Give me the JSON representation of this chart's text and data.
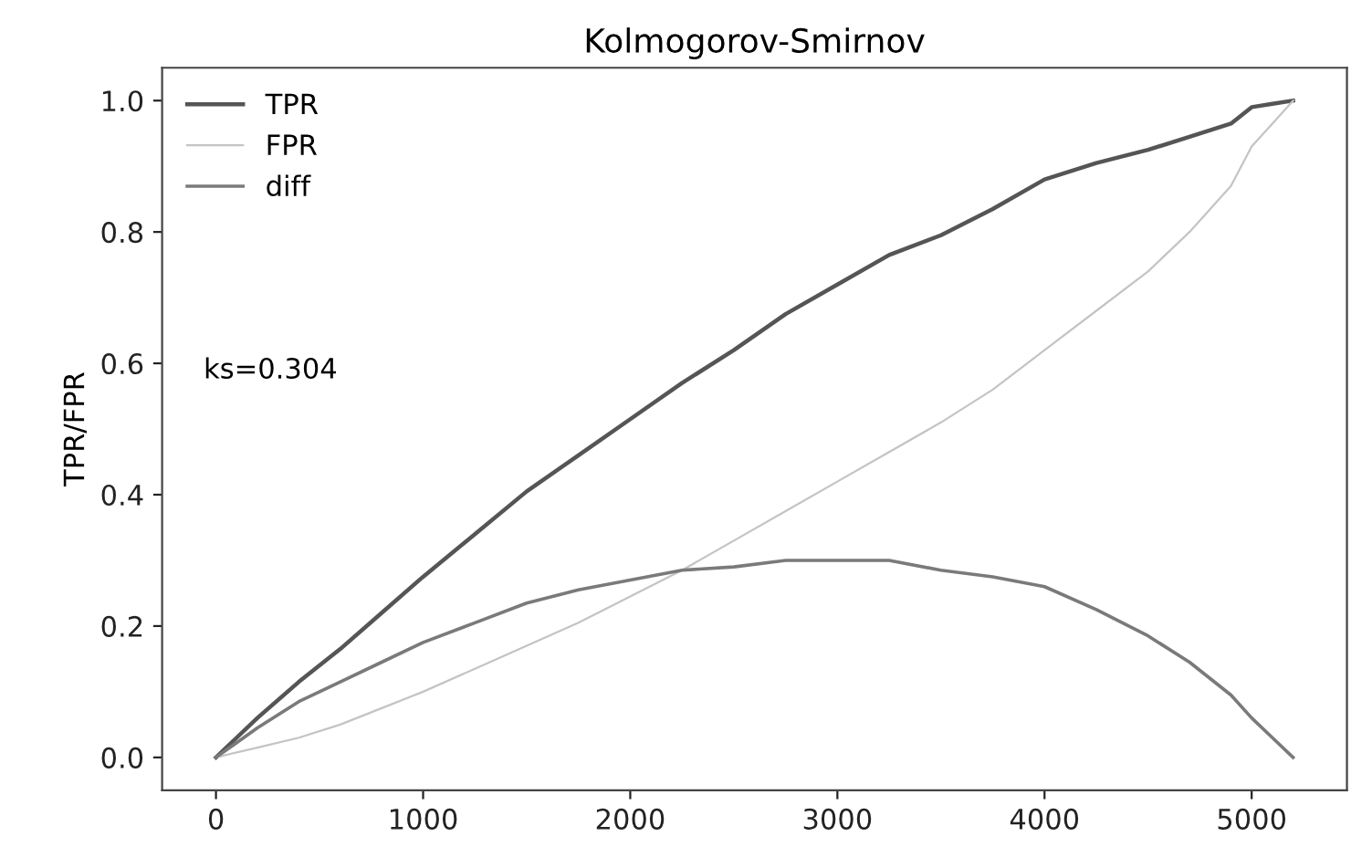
{
  "chart_data": {
    "type": "line",
    "title": "Kolmogorov-Smirnov",
    "ylabel": "TPR/FPR",
    "x": [
      0,
      200,
      400,
      600,
      800,
      1000,
      1250,
      1500,
      1750,
      2000,
      2250,
      2500,
      2750,
      3000,
      3250,
      3500,
      3750,
      4000,
      4250,
      4500,
      4700,
      4900,
      5000,
      5100,
      5200
    ],
    "series": [
      {
        "name": "TPR",
        "color": "#555555",
        "values": [
          0,
          0.06,
          0.115,
          0.165,
          0.22,
          0.275,
          0.34,
          0.405,
          0.46,
          0.515,
          0.57,
          0.62,
          0.675,
          0.72,
          0.765,
          0.795,
          0.835,
          0.88,
          0.905,
          0.925,
          0.945,
          0.965,
          0.99,
          0.995,
          1.0
        ]
      },
      {
        "name": "FPR",
        "color": "#c4c4c4",
        "values": [
          0,
          0.015,
          0.03,
          0.05,
          0.075,
          0.1,
          0.135,
          0.17,
          0.205,
          0.245,
          0.285,
          0.33,
          0.375,
          0.42,
          0.465,
          0.51,
          0.56,
          0.62,
          0.68,
          0.74,
          0.8,
          0.87,
          0.93,
          0.965,
          1.0
        ]
      },
      {
        "name": "diff",
        "color": "#7a7a7a",
        "values": [
          0,
          0.045,
          0.085,
          0.115,
          0.145,
          0.175,
          0.205,
          0.235,
          0.255,
          0.27,
          0.285,
          0.29,
          0.3,
          0.3,
          0.3,
          0.285,
          0.275,
          0.26,
          0.225,
          0.185,
          0.145,
          0.095,
          0.06,
          0.03,
          0.0
        ]
      }
    ],
    "xlim": [
      -260,
      5460
    ],
    "ylim": [
      -0.05,
      1.05
    ],
    "xticks": [
      0,
      1000,
      2000,
      3000,
      4000,
      5000
    ],
    "yticks": [
      {
        "value": 0,
        "label": "0.0"
      },
      {
        "value": 0.2,
        "label": "0.2"
      },
      {
        "value": 0.4,
        "label": "0.4"
      },
      {
        "value": 0.6,
        "label": "0.6"
      },
      {
        "value": 0.8,
        "label": "0.8"
      },
      {
        "value": 1,
        "label": "1.0"
      }
    ],
    "annotations": [
      "ks=0.304"
    ],
    "legend": "top left",
    "grid": false,
    "marker": "none",
    "line_style": "solid"
  }
}
